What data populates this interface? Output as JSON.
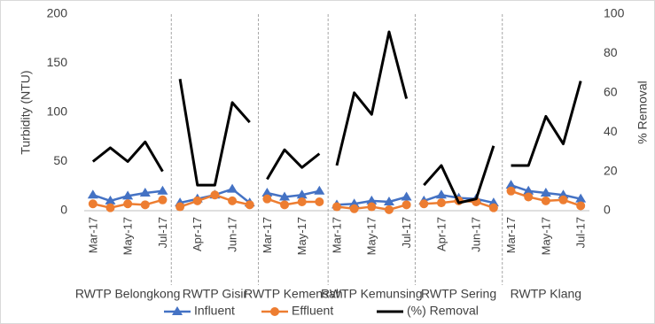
{
  "chart_data": {
    "type": "line",
    "y_label": "Turbidity (NTU)",
    "y2_label": "% Removal",
    "ylim": [
      0,
      200
    ],
    "yticks": [
      0,
      50,
      100,
      150,
      200
    ],
    "y2lim": [
      0,
      100
    ],
    "y2ticks": [
      0,
      20,
      40,
      60,
      80,
      100
    ],
    "groups": [
      {
        "label": "RWTP Belongkong",
        "categories": [
          "Mar-17",
          null,
          "May-17",
          null,
          "Jul-17"
        ]
      },
      {
        "label": "RWTP Gisir",
        "categories": [
          null,
          "Apr-17",
          null,
          "Jun-17",
          null
        ]
      },
      {
        "label": "RWTP Kemensah",
        "categories": [
          "Mar-17",
          null,
          "May-17",
          null
        ]
      },
      {
        "label": "RWTP Kemunsing",
        "categories": [
          "Mar-17",
          null,
          "May-17",
          null,
          "Jul-17"
        ]
      },
      {
        "label": "RWTP Sering",
        "categories": [
          null,
          "Apr-17",
          null,
          "Jun-17",
          null
        ]
      },
      {
        "label": "RWTP Klang",
        "categories": [
          "Mar-17",
          null,
          "May-17",
          null,
          "Jul-17"
        ]
      }
    ],
    "series": [
      {
        "name": "Influent",
        "color": "#4472c4",
        "marker": "triangle",
        "values": [
          [
            16,
            10,
            15,
            18,
            20
          ],
          [
            8,
            12,
            16,
            22,
            8
          ],
          [
            18,
            14,
            16,
            20
          ],
          [
            6,
            7,
            10,
            9,
            14
          ],
          [
            10,
            16,
            13,
            12,
            8
          ],
          [
            26,
            20,
            18,
            16,
            12
          ]
        ]
      },
      {
        "name": "Effluent",
        "color": "#ed7d31",
        "marker": "circle",
        "values": [
          [
            7,
            3,
            7,
            6,
            11
          ],
          [
            4,
            10,
            16,
            10,
            6
          ],
          [
            12,
            6,
            9,
            9
          ],
          [
            4,
            2,
            4,
            1,
            6
          ],
          [
            7,
            8,
            10,
            9,
            3
          ],
          [
            20,
            14,
            10,
            11,
            5
          ]
        ]
      },
      {
        "name": "(%) Removal",
        "color": "#000000",
        "axis": "y2",
        "values": [
          [
            25,
            32,
            25,
            35,
            20
          ],
          [
            67,
            13,
            13,
            55,
            45
          ],
          [
            16,
            31,
            22,
            29
          ],
          [
            23,
            60,
            49,
            91,
            57
          ],
          [
            13,
            23,
            4,
            6,
            33
          ],
          [
            23,
            23,
            48,
            34,
            66
          ]
        ]
      }
    ]
  }
}
